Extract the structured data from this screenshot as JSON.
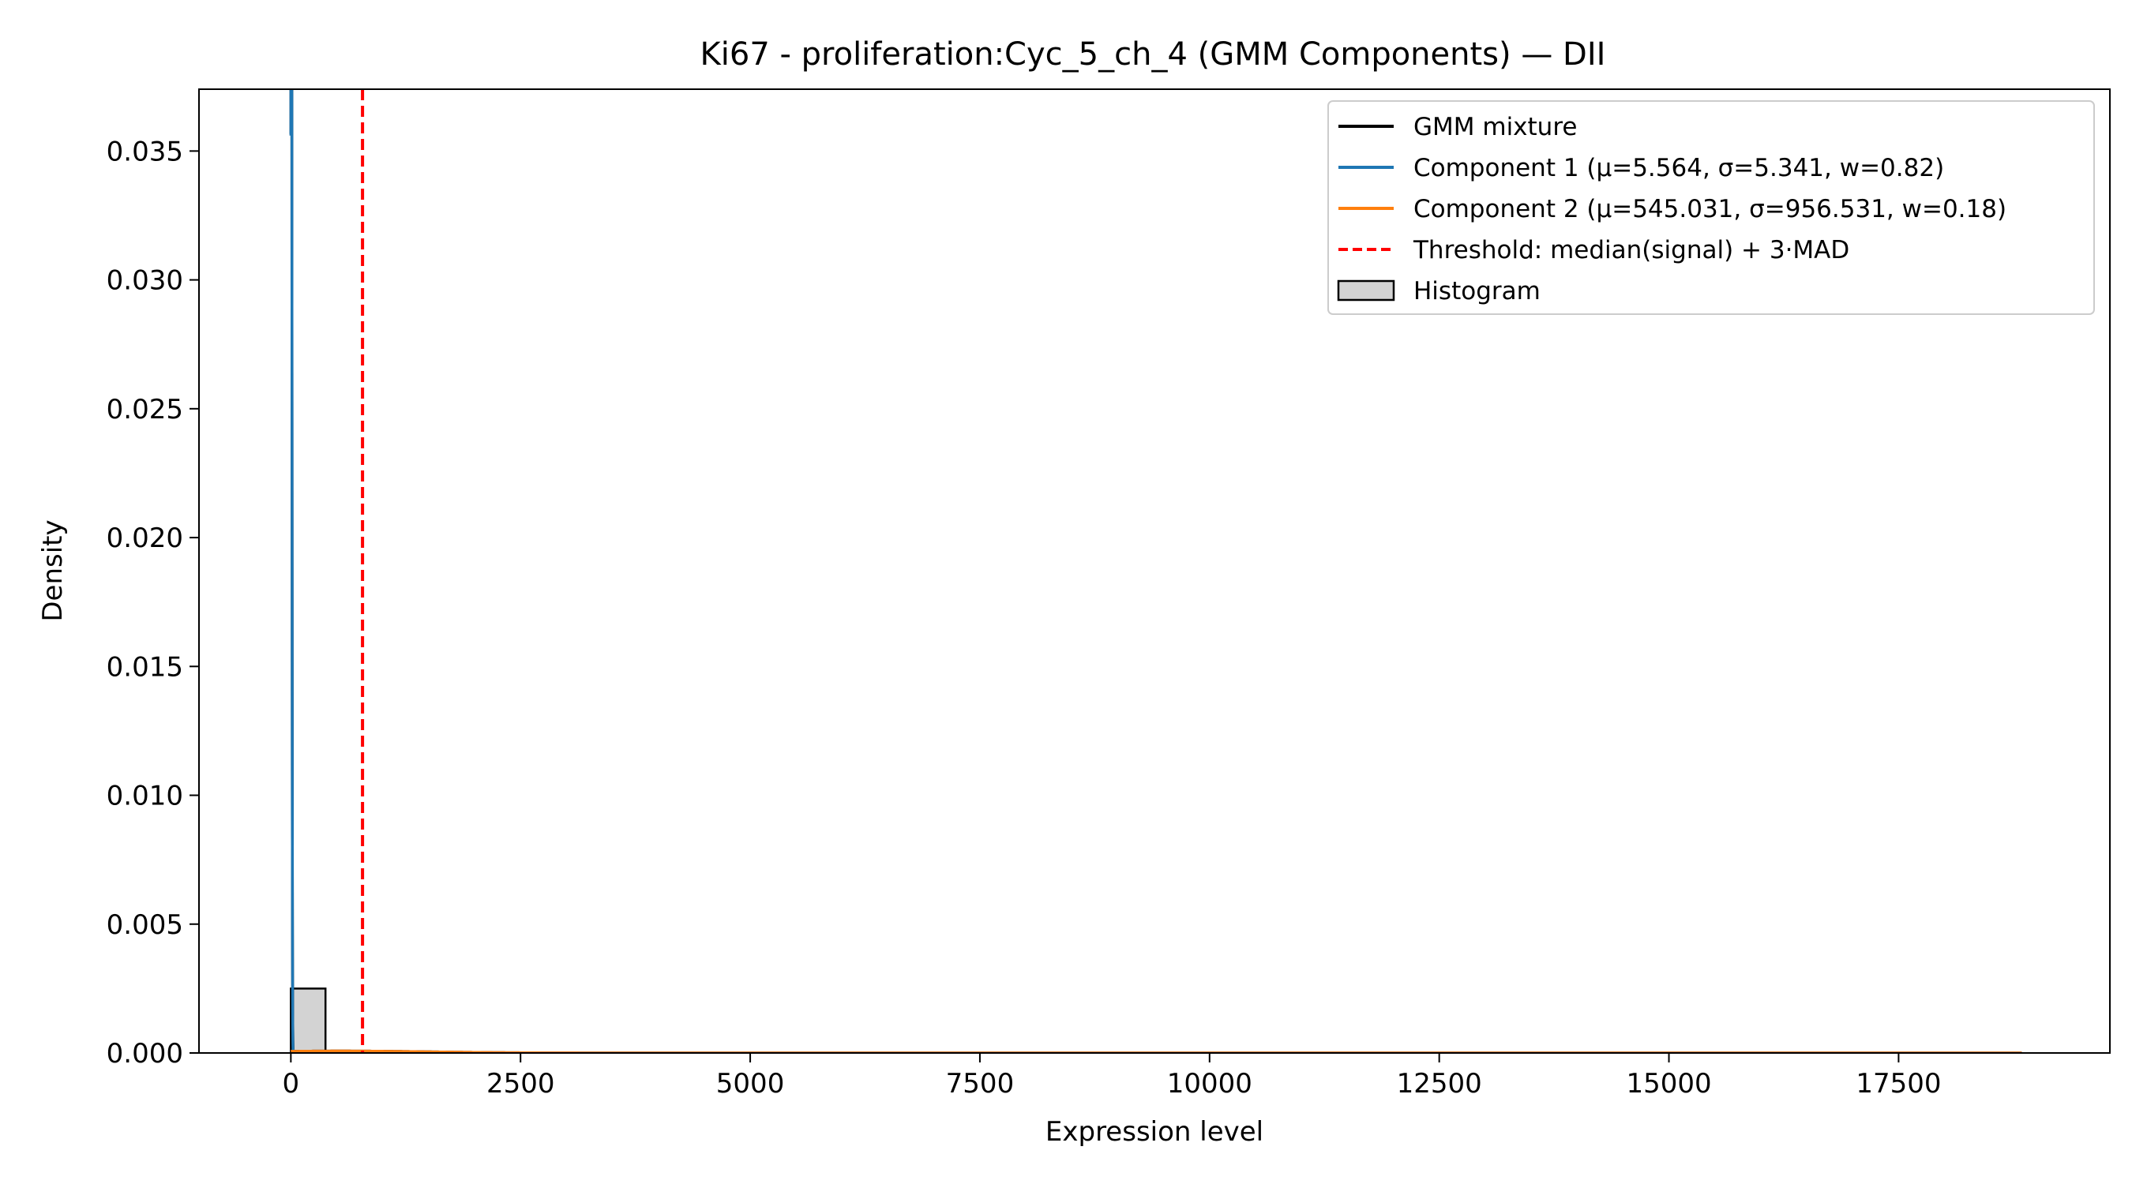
{
  "chart_data": {
    "type": "line",
    "title": "Ki67 - proliferation:Cyc_5_ch_4 (GMM Components) — DII",
    "xlabel": "Expression level",
    "ylabel": "Density",
    "xlim": [
      -1000,
      19800
    ],
    "ylim": [
      0,
      0.0374
    ],
    "grid": false,
    "legend_position": "top-right",
    "x_ticks": [
      0,
      2500,
      5000,
      7500,
      10000,
      12500,
      15000,
      17500
    ],
    "x_tick_labels": [
      "0",
      "2500",
      "5000",
      "7500",
      "10000",
      "12500",
      "15000",
      "17500"
    ],
    "y_ticks": [
      0.0,
      0.005,
      0.01,
      0.015,
      0.02,
      0.025,
      0.03,
      0.035
    ],
    "y_tick_labels": [
      "0.000",
      "0.005",
      "0.010",
      "0.015",
      "0.020",
      "0.025",
      "0.030",
      "0.035"
    ],
    "x_range": [
      0,
      18850
    ],
    "series": [
      {
        "name": "GMM mixture",
        "kind": "line",
        "color": "#000000",
        "style": "solid"
      },
      {
        "name": "Component 1 (μ=5.564, σ=5.341, w=0.82)",
        "kind": "gaussian",
        "mu": 5.564,
        "sigma": 5.341,
        "w": 0.82,
        "color": "#1f77b4",
        "style": "solid"
      },
      {
        "name": "Component 2 (μ=545.031, σ=956.531, w=0.18)",
        "kind": "gaussian",
        "mu": 545.031,
        "sigma": 956.531,
        "w": 0.18,
        "color": "#ff7f0e",
        "style": "solid"
      },
      {
        "name": "Threshold: median(signal) + 3·MAD",
        "kind": "vline",
        "x": 780,
        "color": "#ff0000",
        "style": "dashed"
      },
      {
        "name": "Histogram",
        "kind": "bar",
        "color": "#d3d3d3",
        "edgecolor": "#000000"
      }
    ],
    "histogram": {
      "bins": [
        [
          0,
          377
        ]
      ],
      "values": [
        0.0025
      ]
    }
  }
}
